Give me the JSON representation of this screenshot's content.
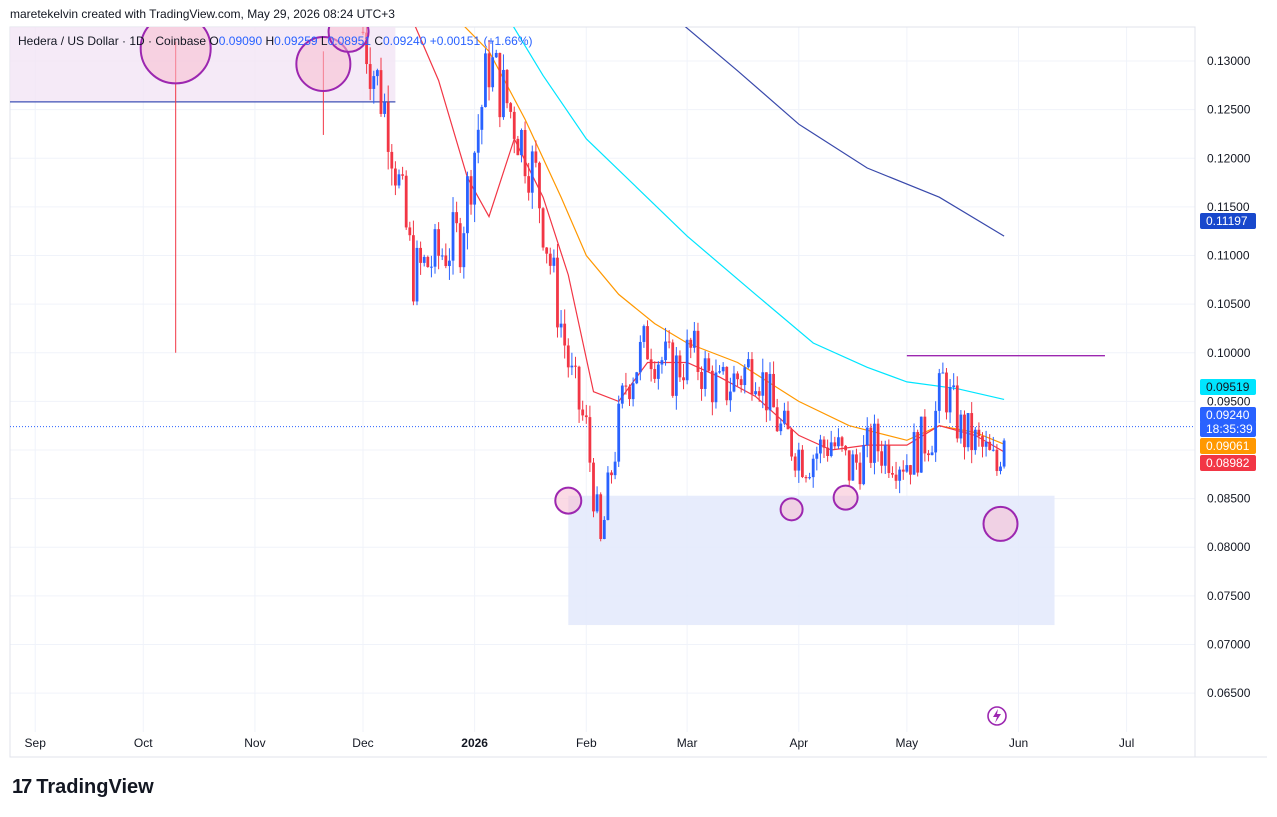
{
  "header": {
    "attribution": "maretekelvin created with TradingView.com, May 29, 2026 08:24 UTC+3"
  },
  "legend": {
    "symbol": "Hedera / US Dollar · 1D · Coinbase",
    "open_label": "O",
    "open": "0.09090",
    "high_label": "H",
    "high": "0.09259",
    "low_label": "L",
    "low": "0.08951",
    "close_label": "C",
    "close": "0.09240",
    "change": "+0.00151 (+1.66%)"
  },
  "brand": {
    "logo": "17",
    "name": "TradingView"
  },
  "colors": {
    "up": "#2962ff",
    "down": "#f23645",
    "ema_fast": "#f23645",
    "ema_mid": "#ff9800",
    "ema_slow": "#00e5ff",
    "ema_long": "#3949ab",
    "zone": "#e3e9fb",
    "circle": "#9c27b0"
  },
  "chart_data": {
    "type": "candlestick",
    "y_range": [
      0.061,
      0.1335
    ],
    "y_ticks": [
      "0.13000",
      "0.12500",
      "0.12000",
      "0.11500",
      "0.11000",
      "0.10500",
      "0.10000",
      "0.09500",
      "0.09000",
      "0.08500",
      "0.08000",
      "0.07500",
      "0.07000",
      "0.06500"
    ],
    "x_ticks": [
      {
        "label": "Sep",
        "date": "2025-09-01"
      },
      {
        "label": "Oct",
        "date": "2025-10-01"
      },
      {
        "label": "Nov",
        "date": "2025-11-01"
      },
      {
        "label": "Dec",
        "date": "2025-12-01"
      },
      {
        "label": "2026",
        "date": "2026-01-01",
        "bold": true
      },
      {
        "label": "Feb",
        "date": "2026-02-01"
      },
      {
        "label": "Mar",
        "date": "2026-03-01"
      },
      {
        "label": "Apr",
        "date": "2026-04-01"
      },
      {
        "label": "May",
        "date": "2026-05-01"
      },
      {
        "label": "Jun",
        "date": "2026-06-01"
      },
      {
        "label": "Jul",
        "date": "2026-07-01"
      }
    ],
    "price_labels": [
      {
        "value": "0.11197",
        "bg": "#1848cc",
        "fg": "#ffffff"
      },
      {
        "value": "0.09519",
        "bg": "#00e5ff",
        "fg": "#131722"
      },
      {
        "value": "0.09240",
        "bg": "#2962ff",
        "fg": "#ffffff"
      },
      {
        "value": "18:35:39",
        "bg": "#2962ff",
        "fg": "#ffffff"
      },
      {
        "value": "0.09061",
        "bg": "#ff9800",
        "fg": "#ffffff"
      },
      {
        "value": "0.08982",
        "bg": "#f23645",
        "fg": "#ffffff"
      }
    ],
    "ema_long": [
      [
        "2026-02-27",
        0.134
      ],
      [
        "2026-03-15",
        0.129
      ],
      [
        "2026-04-01",
        0.1235
      ],
      [
        "2026-04-20",
        0.119
      ],
      [
        "2026-05-10",
        0.116
      ],
      [
        "2026-05-28",
        0.112
      ]
    ],
    "ema_slow": [
      [
        "2026-01-11",
        0.134
      ],
      [
        "2026-01-20",
        0.1285
      ],
      [
        "2026-02-01",
        0.122
      ],
      [
        "2026-02-15",
        0.117
      ],
      [
        "2026-03-01",
        0.112
      ],
      [
        "2026-03-20",
        0.106
      ],
      [
        "2026-04-05",
        0.101
      ],
      [
        "2026-04-20",
        0.0985
      ],
      [
        "2026-05-01",
        0.097
      ],
      [
        "2026-05-15",
        0.0963
      ],
      [
        "2026-05-28",
        0.0952
      ]
    ],
    "ema_mid": [
      [
        "2025-12-28",
        0.134
      ],
      [
        "2026-01-05",
        0.131
      ],
      [
        "2026-01-15",
        0.124
      ],
      [
        "2026-01-25",
        0.116
      ],
      [
        "2026-02-01",
        0.11
      ],
      [
        "2026-02-10",
        0.106
      ],
      [
        "2026-02-20",
        0.103
      ],
      [
        "2026-03-01",
        0.101
      ],
      [
        "2026-03-15",
        0.099
      ],
      [
        "2026-04-01",
        0.095
      ],
      [
        "2026-04-15",
        0.0925
      ],
      [
        "2026-05-01",
        0.091
      ],
      [
        "2026-05-10",
        0.0925
      ],
      [
        "2026-05-20",
        0.0918
      ],
      [
        "2026-05-28",
        0.0906
      ]
    ],
    "ema_fast": [
      [
        "2025-12-15",
        0.134
      ],
      [
        "2025-12-22",
        0.128
      ],
      [
        "2025-12-30",
        0.118
      ],
      [
        "2026-01-05",
        0.114
      ],
      [
        "2026-01-12",
        0.122
      ],
      [
        "2026-01-20",
        0.116
      ],
      [
        "2026-01-27",
        0.108
      ],
      [
        "2026-02-03",
        0.096
      ],
      [
        "2026-02-10",
        0.095
      ],
      [
        "2026-02-18",
        0.099
      ],
      [
        "2026-03-01",
        0.099
      ],
      [
        "2026-03-10",
        0.0975
      ],
      [
        "2026-03-20",
        0.0955
      ],
      [
        "2026-04-01",
        0.0915
      ],
      [
        "2026-04-10",
        0.09
      ],
      [
        "2026-04-20",
        0.0905
      ],
      [
        "2026-05-01",
        0.0905
      ],
      [
        "2026-05-10",
        0.0925
      ],
      [
        "2026-05-20",
        0.0915
      ],
      [
        "2026-05-28",
        0.0898
      ]
    ],
    "candles_keypoints": [
      [
        "2025-12-01",
        0.133
      ],
      [
        "2025-12-08",
        0.124
      ],
      [
        "2025-12-15",
        0.108
      ],
      [
        "2025-12-22",
        0.11
      ],
      [
        "2025-12-28",
        0.112
      ],
      [
        "2026-01-05",
        0.13
      ],
      [
        "2026-01-12",
        0.124
      ],
      [
        "2026-01-18",
        0.118
      ],
      [
        "2026-01-24",
        0.105
      ],
      [
        "2026-01-28",
        0.097
      ],
      [
        "2026-02-01",
        0.092
      ],
      [
        "2026-02-05",
        0.08
      ],
      [
        "2026-02-08",
        0.088
      ],
      [
        "2026-02-12",
        0.097
      ],
      [
        "2026-02-18",
        0.101
      ],
      [
        "2026-02-25",
        0.098
      ],
      [
        "2026-03-02",
        0.1
      ],
      [
        "2026-03-10",
        0.096
      ],
      [
        "2026-03-20",
        0.099
      ],
      [
        "2026-03-27",
        0.092
      ],
      [
        "2026-04-03",
        0.089
      ],
      [
        "2026-04-10",
        0.091
      ],
      [
        "2026-04-15",
        0.088
      ],
      [
        "2026-04-22",
        0.0905
      ],
      [
        "2026-05-01",
        0.089
      ],
      [
        "2026-05-08",
        0.092
      ],
      [
        "2026-05-11",
        0.097
      ],
      [
        "2026-05-16",
        0.092
      ],
      [
        "2026-05-22",
        0.09
      ],
      [
        "2026-05-26",
        0.088
      ],
      [
        "2026-05-28",
        0.0924
      ]
    ],
    "top_zone": {
      "x0": "2025-08-25",
      "x1": "2025-12-10",
      "y0": 0.1258,
      "y1": 0.134
    },
    "support_zone": {
      "x0": "2026-01-27",
      "x1": "2026-06-11",
      "y0": 0.072,
      "y1": 0.0853
    },
    "resistance_line": {
      "x0": "2026-05-01",
      "x1": "2026-06-25",
      "y": 0.0997
    },
    "current_price_line": 0.0924,
    "circles": [
      {
        "date": "2025-10-10",
        "y": 0.1313,
        "r": 35
      },
      {
        "date": "2025-11-20",
        "y": 0.1297,
        "r": 27
      },
      {
        "date": "2025-11-27",
        "y": 0.133,
        "r": 20
      },
      {
        "date": "2026-01-27",
        "y": 0.0848,
        "r": 13
      },
      {
        "date": "2026-03-30",
        "y": 0.0839,
        "r": 11
      },
      {
        "date": "2026-04-14",
        "y": 0.0851,
        "r": 12
      },
      {
        "date": "2026-05-27",
        "y": 0.0824,
        "r": 17
      }
    ],
    "spike_wicks": [
      {
        "date": "2025-10-10",
        "high": 0.132,
        "low": 0.1
      },
      {
        "date": "2025-11-20",
        "high": 0.131,
        "low": 0.1224
      }
    ]
  }
}
